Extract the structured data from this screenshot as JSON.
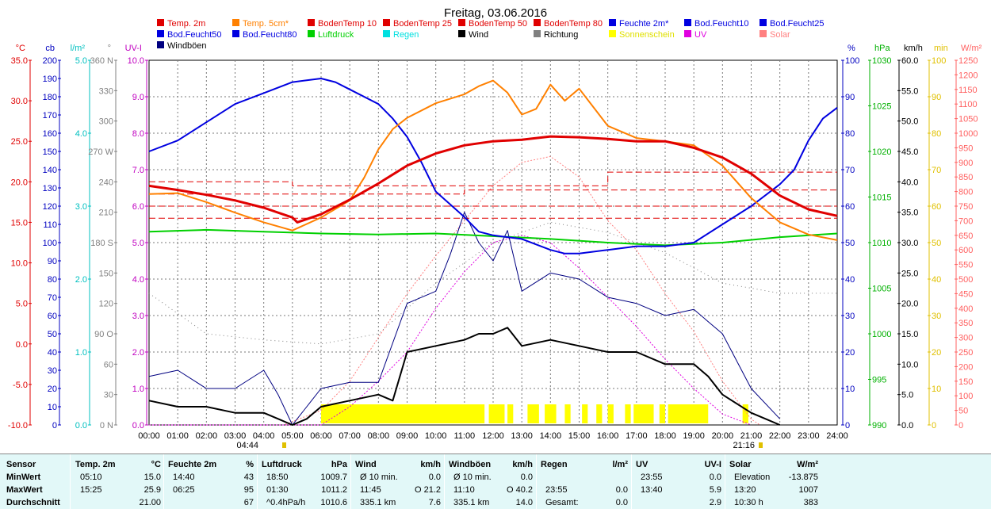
{
  "chart_data": {
    "type": "line",
    "title": "Freitag, 03.06.2016",
    "x_ticks": [
      "00:00",
      "01:00",
      "02:00",
      "03:00",
      "04:00",
      "05:00",
      "06:00",
      "07:00",
      "08:00",
      "09:00",
      "10:00",
      "11:00",
      "12:00",
      "13:00",
      "14:00",
      "15:00",
      "16:00",
      "17:00",
      "18:00",
      "19:00",
      "20:00",
      "21:00",
      "22:00",
      "23:00",
      "24:00"
    ],
    "sunrise": "04:44",
    "sunset": "21:16",
    "grid": true,
    "legend": [
      {
        "name": "Temp. 2m",
        "color": "#e00000"
      },
      {
        "name": "Temp. 5cm*",
        "color": "#ff8000"
      },
      {
        "name": "BodenTemp 10",
        "color": "#e00000"
      },
      {
        "name": "BodenTemp 25",
        "color": "#e00000"
      },
      {
        "name": "BodenTemp 50",
        "color": "#e00000"
      },
      {
        "name": "BodenTemp 80",
        "color": "#e00000"
      },
      {
        "name": "Feuchte 2m*",
        "color": "#0000e0"
      },
      {
        "name": "Bod.Feucht10",
        "color": "#0000e0"
      },
      {
        "name": "Bod.Feucht25",
        "color": "#0000e0"
      },
      {
        "name": "Bod.Feucht50",
        "color": "#0000e0"
      },
      {
        "name": "Bod.Feucht80",
        "color": "#0000e0"
      },
      {
        "name": "Luftdruck",
        "color": "#00d000"
      },
      {
        "name": "Regen",
        "color": "#00e0e0"
      },
      {
        "name": "Wind",
        "color": "#000000"
      },
      {
        "name": "Richtung",
        "color": "#808080"
      },
      {
        "name": "Sonnenschein",
        "color": "#ffff00"
      },
      {
        "name": "UV",
        "color": "#e000e0"
      },
      {
        "name": "Solar",
        "color": "#ff8080"
      },
      {
        "name": "Windböen",
        "color": "#000080"
      }
    ],
    "axes": [
      {
        "unit": "°C",
        "color": "#e00000",
        "ticks": [
          "35.0",
          "30.0",
          "25.0",
          "20.0",
          "15.0",
          "10.0",
          "5.0",
          "0.0",
          "-5.0",
          "-10.0"
        ],
        "range": [
          -10,
          35
        ]
      },
      {
        "unit": "cb",
        "color": "#0000c0",
        "ticks": [
          "200",
          "190",
          "180",
          "170",
          "160",
          "150",
          "140",
          "130",
          "120",
          "110",
          "100",
          "90",
          "80",
          "70",
          "60",
          "50",
          "40",
          "30",
          "20",
          "10",
          "0"
        ],
        "range": [
          0,
          200
        ]
      },
      {
        "unit": "l/m²",
        "color": "#00c0c0",
        "ticks": [
          "5.0",
          "4.0",
          "3.0",
          "2.0",
          "1.0",
          "0.0"
        ],
        "range": [
          0,
          5
        ]
      },
      {
        "unit": "°",
        "color": "#808080",
        "ticks": [
          "360 N",
          "330",
          "300",
          "270 W",
          "240",
          "210",
          "180 S",
          "150",
          "120",
          "90 O",
          "60",
          "30",
          "0 N"
        ],
        "range": [
          0,
          360
        ]
      },
      {
        "unit": "UV-I",
        "color": "#c000c0",
        "ticks": [
          "10.0",
          "9.0",
          "8.0",
          "7.0",
          "6.0",
          "5.0",
          "4.0",
          "3.0",
          "2.0",
          "1.0",
          "0.0"
        ],
        "range": [
          0,
          10
        ]
      },
      {
        "unit": "%",
        "color": "#0000c0",
        "ticks": [
          "100",
          "90",
          "80",
          "70",
          "60",
          "50",
          "40",
          "30",
          "20",
          "10",
          "0"
        ],
        "range": [
          0,
          100
        ]
      },
      {
        "unit": "hPa",
        "color": "#00b000",
        "ticks": [
          "1030",
          "1025",
          "1020",
          "1015",
          "1010",
          "1005",
          "1000",
          "995",
          "990"
        ],
        "range": [
          990,
          1030
        ]
      },
      {
        "unit": "km/h",
        "color": "#000000",
        "ticks": [
          "60.0",
          "55.0",
          "50.0",
          "45.0",
          "40.0",
          "35.0",
          "30.0",
          "25.0",
          "20.0",
          "15.0",
          "10.0",
          "5.0",
          "0.0"
        ],
        "range": [
          0,
          60
        ]
      },
      {
        "unit": "min",
        "color": "#e0c000",
        "ticks": [
          "100",
          "90",
          "80",
          "70",
          "60",
          "50",
          "40",
          "30",
          "20",
          "10",
          "0"
        ],
        "range": [
          0,
          100
        ]
      },
      {
        "unit": "W/m²",
        "color": "#ff6060",
        "ticks": [
          "1250",
          "1200",
          "1150",
          "1100",
          "1050",
          "1000",
          "950",
          "900",
          "850",
          "800",
          "750",
          "700",
          "650",
          "600",
          "550",
          "500",
          "450",
          "400",
          "350",
          "300",
          "250",
          "200",
          "150",
          "100",
          "50",
          "0"
        ],
        "range": [
          0,
          1250
        ]
      }
    ],
    "series": [
      {
        "name": "Temp. 2m",
        "unit": "°C",
        "x": [
          0,
          1,
          2,
          3,
          4,
          5,
          5.17,
          6,
          7,
          8,
          9,
          10,
          11,
          12,
          13,
          14,
          15,
          16,
          17,
          18,
          19,
          20,
          21,
          22,
          23,
          24
        ],
        "y": [
          19.5,
          19.0,
          18.4,
          17.7,
          16.8,
          15.6,
          15.0,
          16.0,
          17.8,
          19.8,
          22.0,
          23.5,
          24.5,
          25.0,
          25.2,
          25.6,
          25.5,
          25.3,
          25.0,
          25.0,
          24.2,
          23.0,
          21.0,
          18.3,
          16.6,
          15.8
        ]
      },
      {
        "name": "Temp. 5cm*",
        "unit": "°C",
        "x": [
          0,
          1,
          2,
          3,
          4,
          5,
          6,
          7,
          7.5,
          8,
          8.5,
          9,
          10,
          11,
          11.5,
          12,
          12.5,
          13,
          13.5,
          14,
          14.5,
          15,
          16,
          17,
          18,
          19,
          20,
          21,
          22,
          23,
          24
        ],
        "y": [
          18.5,
          18.6,
          17.5,
          16.2,
          15.0,
          14.0,
          15.6,
          17.7,
          20.5,
          24.0,
          26.5,
          27.9,
          29.7,
          30.8,
          31.8,
          32.5,
          31.0,
          28.3,
          29.0,
          32.0,
          30.0,
          31.5,
          26.9,
          25.4,
          25.0,
          24.5,
          22.0,
          18.0,
          15.0,
          13.5,
          12.8
        ]
      },
      {
        "name": "BodenTemp 10",
        "unit": "°C",
        "x": [
          0,
          24
        ],
        "y": [
          15.5,
          15.5
        ]
      },
      {
        "name": "BodenTemp 25",
        "unit": "°C",
        "x": [
          0,
          24
        ],
        "y": [
          17.0,
          17.0
        ]
      },
      {
        "name": "BodenTemp 50",
        "unit": "°C",
        "x": [
          0,
          11,
          11,
          24
        ],
        "y": [
          18.5,
          18.5,
          19.0,
          19.0
        ]
      },
      {
        "name": "BodenTemp 80",
        "unit": "°C",
        "x": [
          0,
          5,
          5,
          16,
          16,
          24
        ],
        "y": [
          20.0,
          20.0,
          19.5,
          19.5,
          21.2,
          21.2
        ]
      },
      {
        "name": "Feuchte 2m*",
        "unit": "%",
        "x": [
          0,
          1,
          2,
          3,
          4,
          5,
          6,
          6.5,
          7,
          8,
          8.5,
          9,
          9.5,
          10,
          11,
          11.5,
          12,
          13,
          14,
          14.5,
          15,
          16,
          17,
          18,
          19,
          20,
          21,
          22,
          22.5,
          23,
          23.5,
          24
        ],
        "y": [
          75,
          78,
          83,
          88,
          91,
          94,
          95,
          94,
          92,
          88,
          84,
          79,
          72,
          64,
          57,
          53,
          52,
          51,
          48,
          47,
          47,
          48,
          49,
          49,
          50,
          55,
          60,
          66,
          70,
          78,
          84,
          87
        ]
      },
      {
        "name": "Luftdruck",
        "unit": "hPa",
        "x": [
          0,
          2,
          4,
          6,
          8,
          10,
          12,
          14,
          16,
          18,
          20,
          22,
          24
        ],
        "y": [
          1011.2,
          1011.4,
          1011.2,
          1011.0,
          1010.9,
          1011.0,
          1010.7,
          1010.4,
          1010.0,
          1009.7,
          1010.0,
          1010.6,
          1011.0
        ]
      },
      {
        "name": "Wind",
        "unit": "km/h",
        "x": [
          0,
          1,
          2,
          3,
          4,
          4.5,
          5,
          5.5,
          6,
          7,
          8,
          8.5,
          9,
          10,
          11,
          11.5,
          12,
          12.5,
          13,
          14,
          15,
          16,
          17,
          18,
          19,
          19.5,
          20,
          21,
          21.5,
          22
        ],
        "y": [
          4,
          3,
          3,
          2,
          2,
          1,
          0,
          1,
          3,
          4,
          5,
          4,
          12,
          13,
          14,
          15,
          15,
          16,
          13,
          14,
          13,
          12,
          12,
          10,
          10,
          8,
          5,
          2,
          1,
          0
        ]
      },
      {
        "name": "Windböen",
        "unit": "km/h",
        "x": [
          0,
          1,
          2,
          3,
          4,
          4.5,
          5,
          5.5,
          6,
          7,
          8,
          9,
          10,
          10.5,
          11,
          11.5,
          12,
          12.5,
          13,
          14,
          15,
          16,
          17,
          18,
          19,
          19.5,
          20,
          21,
          22
        ],
        "y": [
          8,
          9,
          6,
          6,
          9,
          5,
          0,
          3,
          6,
          7,
          7,
          20,
          22,
          28,
          35,
          30,
          27,
          32,
          22,
          25,
          24,
          21,
          20,
          18,
          19,
          17,
          15,
          6,
          1
        ]
      },
      {
        "name": "Solar",
        "unit": "W/m²",
        "x": [
          0,
          4.7,
          6,
          7,
          8,
          9,
          10,
          11,
          12,
          13,
          14,
          15,
          16,
          17,
          18,
          19,
          20,
          21,
          21.3
        ],
        "y": [
          0,
          0,
          50,
          150,
          300,
          450,
          580,
          700,
          820,
          900,
          920,
          850,
          700,
          600,
          450,
          320,
          150,
          20,
          0
        ]
      },
      {
        "name": "UV",
        "unit": "UV-I",
        "x": [
          0,
          6,
          7,
          8,
          9,
          10,
          11,
          12,
          13,
          14,
          15,
          16,
          17,
          18,
          19,
          20,
          21
        ],
        "y": [
          0,
          0,
          0.5,
          1.2,
          2.0,
          3.2,
          4.2,
          5.0,
          5.2,
          5.0,
          4.3,
          3.5,
          2.7,
          1.8,
          1.0,
          0.3,
          0
        ]
      },
      {
        "name": "Richtung",
        "unit": "°",
        "x": [
          0,
          2,
          4,
          6,
          8,
          10,
          12,
          14,
          16,
          18,
          20,
          21,
          22,
          24
        ],
        "y": [
          130,
          90,
          84,
          80,
          90,
          140,
          180,
          200,
          190,
          170,
          140,
          135,
          130,
          130
        ]
      }
    ],
    "sunshine_blocks": [
      [
        6.0,
        11.7
      ],
      [
        11.85,
        12.4
      ],
      [
        12.5,
        12.7
      ],
      [
        13.2,
        13.6
      ],
      [
        13.8,
        14.2
      ],
      [
        14.5,
        14.7
      ],
      [
        15.1,
        15.3
      ],
      [
        15.6,
        15.8
      ],
      [
        16.0,
        16.2
      ],
      [
        16.6,
        16.8
      ],
      [
        16.9,
        17.6
      ],
      [
        17.8,
        18.0
      ],
      [
        18.1,
        19.5
      ],
      [
        20.7,
        20.9
      ]
    ]
  },
  "table": {
    "row_labels": [
      "Sensor",
      "MinWert",
      "MaxWert",
      "Durchschnitt"
    ],
    "groups": [
      {
        "title": "Temp. 2m",
        "unit": "°C",
        "rows": [
          [
            "05:10",
            "15.0"
          ],
          [
            "15:25",
            "25.9"
          ],
          [
            "",
            "21.00"
          ]
        ]
      },
      {
        "title": "Feuchte 2m",
        "unit": "%",
        "rows": [
          [
            "14:40",
            "43"
          ],
          [
            "06:25",
            "95"
          ],
          [
            "",
            "67"
          ]
        ]
      },
      {
        "title": "Luftdruck",
        "unit": "hPa",
        "rows": [
          [
            "18:50",
            "1009.7"
          ],
          [
            "01:30",
            "1011.2"
          ],
          [
            "^0.4hPa/h",
            "1010.6"
          ]
        ]
      },
      {
        "title": "Wind",
        "unit": "km/h",
        "rows": [
          [
            "Ø 10 min.",
            "0.0"
          ],
          [
            "11:45",
            "O 21.2"
          ],
          [
            "335.1 km",
            "7.6"
          ]
        ]
      },
      {
        "title": "Windböen",
        "unit": "km/h",
        "rows": [
          [
            "Ø 10 min.",
            "0.0"
          ],
          [
            "11:10",
            "O 40.2"
          ],
          [
            "335.1 km",
            "14.0"
          ]
        ]
      },
      {
        "title": "Regen",
        "unit": "l/m²",
        "rows": [
          [
            "",
            ""
          ],
          [
            "23:55",
            "0.0"
          ],
          [
            "Gesamt:",
            "0.0"
          ]
        ]
      },
      {
        "title": "UV",
        "unit": "UV-I",
        "rows": [
          [
            "23:55",
            "0.0"
          ],
          [
            "13:40",
            "5.9"
          ],
          [
            "",
            "2.9"
          ]
        ]
      },
      {
        "title": "Solar",
        "unit": "W/m²",
        "rows": [
          [
            "Elevation",
            "-13.875"
          ],
          [
            "13:20",
            "1007"
          ],
          [
            "10:30 h",
            "383"
          ]
        ]
      }
    ]
  }
}
